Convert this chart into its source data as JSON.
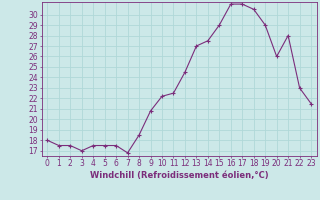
{
  "x": [
    0,
    1,
    2,
    3,
    4,
    5,
    6,
    7,
    8,
    9,
    10,
    11,
    12,
    13,
    14,
    15,
    16,
    17,
    18,
    19,
    20,
    21,
    22,
    23
  ],
  "y": [
    18.0,
    17.5,
    17.5,
    17.0,
    17.5,
    17.5,
    17.5,
    16.8,
    18.5,
    20.8,
    22.2,
    22.5,
    24.5,
    27.0,
    27.5,
    29.0,
    31.0,
    31.0,
    30.5,
    29.0,
    26.0,
    28.0,
    23.0,
    21.5
  ],
  "line_color": "#7b2d7b",
  "marker": "+",
  "marker_size": 3,
  "bg_color": "#cce8e8",
  "grid_color": "#b0d8d8",
  "xlabel": "Windchill (Refroidissement éolien,°C)",
  "ylabel_ticks": [
    17,
    18,
    19,
    20,
    21,
    22,
    23,
    24,
    25,
    26,
    27,
    28,
    29,
    30
  ],
  "ylim": [
    16.5,
    31.2
  ],
  "xlim": [
    -0.5,
    23.5
  ],
  "tick_color": "#7b2d7b",
  "font_size": 5.5,
  "xlabel_fontsize": 6.0
}
